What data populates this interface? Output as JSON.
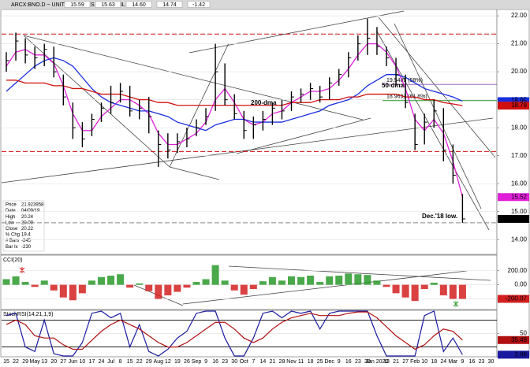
{
  "header": {
    "title": "ARCX:BNO.D ~ UNITED STATES BRENT OIL FUND",
    "quote": [
      "15.59",
      "15.63",
      "14.60",
      "14.74",
      "-1.42"
    ]
  },
  "info": [
    [
      "Price",
      "21.923958"
    ],
    [
      "Date",
      "04/09/19"
    ],
    [
      "High",
      "20.24"
    ],
    [
      "Low",
      "20.09"
    ],
    [
      "Close",
      "20.22"
    ],
    [
      "% Chg",
      "19.4"
    ],
    [
      "# Bars",
      "-245"
    ],
    [
      "Bar Ix",
      "-230"
    ]
  ],
  "chart_data": [
    {
      "type": "ohlc",
      "color": "#000000",
      "grid": true,
      "high": [
        20.7,
        21.4,
        21.2,
        20.9,
        21.0,
        20.9,
        19.9,
        18.9,
        18.2,
        18.5,
        18.9,
        19.5,
        19.6,
        19.5,
        19.0,
        19.1,
        17.9,
        17.8,
        17.8,
        18.0,
        18.3,
        18.7,
        21.0,
        20.3,
        19.2,
        18.6,
        18.4,
        18.6,
        18.9,
        19.0,
        19.3,
        19.4,
        19.6,
        19.5,
        19.8,
        20.1,
        20.7,
        21.3,
        21.9,
        21.6,
        20.9,
        20.5,
        19.9,
        18.5,
        18.5,
        19.0,
        18.7,
        17.4,
        15.63,
        null,
        null,
        null
      ],
      "low": [
        20.0,
        20.4,
        20.3,
        20.1,
        20.2,
        19.8,
        18.8,
        17.6,
        17.3,
        17.7,
        18.2,
        18.5,
        18.9,
        18.4,
        18.3,
        17.8,
        16.6,
        16.9,
        17.1,
        17.3,
        17.7,
        18.1,
        18.6,
        18.8,
        18.3,
        17.6,
        17.6,
        17.9,
        18.1,
        18.3,
        18.6,
        18.9,
        19.0,
        18.9,
        19.0,
        19.5,
        19.8,
        20.4,
        20.6,
        20.6,
        20.2,
        19.5,
        18.7,
        17.2,
        17.4,
        18.0,
        16.8,
        16.0,
        14.6,
        null,
        null,
        null
      ],
      "close": [
        20.4,
        21.1,
        20.6,
        20.5,
        20.8,
        20.0,
        19.1,
        18.0,
        17.6,
        18.3,
        18.7,
        18.9,
        19.3,
        18.6,
        18.7,
        18.4,
        17.4,
        17.2,
        17.5,
        17.6,
        18.0,
        18.4,
        20.0,
        19.0,
        18.5,
        17.9,
        18.1,
        18.3,
        18.7,
        18.6,
        19.1,
        19.2,
        19.4,
        19.1,
        19.6,
        19.9,
        20.5,
        21.0,
        21.2,
        20.9,
        20.5,
        19.9,
        18.9,
        17.4,
        18.2,
        18.6,
        17.2,
        16.3,
        14.74,
        null,
        null,
        null
      ],
      "series": [
        {
          "color": "#e020d8",
          "values": [
            20.2,
            20.7,
            20.8,
            20.6,
            20.6,
            20.3,
            19.5,
            18.5,
            17.9,
            17.9,
            18.4,
            18.7,
            19.0,
            19.0,
            18.8,
            18.5,
            17.8,
            17.4,
            17.4,
            17.6,
            17.8,
            18.2,
            19.0,
            19.4,
            18.9,
            18.3,
            18.1,
            18.2,
            18.5,
            18.6,
            18.9,
            19.1,
            19.3,
            19.3,
            19.4,
            19.7,
            20.1,
            20.6,
            21.0,
            21.0,
            20.7,
            20.2,
            19.4,
            18.3,
            17.9,
            18.3,
            17.8,
            16.8,
            15.52,
            null,
            null,
            null
          ]
        },
        {
          "color": "#1a2ee0",
          "values": [
            19.3,
            19.6,
            19.9,
            20.2,
            20.4,
            20.5,
            20.4,
            20.2,
            19.8,
            19.4,
            19.1,
            18.9,
            18.8,
            18.7,
            18.6,
            18.6,
            18.5,
            18.4,
            18.2,
            18.1,
            18.0,
            17.9,
            18.1,
            18.2,
            18.3,
            18.3,
            18.2,
            18.2,
            18.2,
            18.2,
            18.3,
            18.4,
            18.5,
            18.6,
            18.8,
            18.9,
            19.0,
            19.2,
            19.5,
            19.7,
            19.9,
            19.9,
            19.8,
            19.6,
            19.4,
            19.3,
            19.2,
            19.1,
            18.95,
            null,
            null,
            null
          ]
        },
        {
          "color": "#d01010",
          "values": [
            19.7,
            19.7,
            19.6,
            19.6,
            19.6,
            19.5,
            19.5,
            19.4,
            19.4,
            19.3,
            19.2,
            19.2,
            19.2,
            19.1,
            19.0,
            19.0,
            18.9,
            18.9,
            18.8,
            18.8,
            18.8,
            18.8,
            18.8,
            18.8,
            18.8,
            18.8,
            18.8,
            18.8,
            18.8,
            18.8,
            18.9,
            18.9,
            18.9,
            19.0,
            19.0,
            19.0,
            19.1,
            19.1,
            19.2,
            19.2,
            19.2,
            19.2,
            19.1,
            19.1,
            19.0,
            19.0,
            18.9,
            18.85,
            18.79,
            null,
            null,
            null
          ]
        }
      ],
      "ylim": [
        13.5,
        22.2
      ],
      "yticks": [
        {
          "value": 14,
          "label": "14.00"
        },
        {
          "value": 15,
          "label": "15.00"
        },
        {
          "value": 16,
          "label": "16.00"
        },
        {
          "value": 17,
          "label": "17.00"
        },
        {
          "value": 18,
          "label": "18.00"
        },
        {
          "value": 19,
          "label": "19.00"
        },
        {
          "value": 20,
          "label": "20.00"
        },
        {
          "value": 21,
          "label": "21.00"
        },
        {
          "value": 22,
          "label": "22.00"
        }
      ],
      "hlines": [
        {
          "value": 21.35,
          "color": "#d01010"
        },
        {
          "value": 17.15,
          "color": "#d01010"
        },
        {
          "value": 14.6,
          "color": "#888888"
        }
      ],
      "fib": [
        {
          "value": 19.5485,
          "label": "19.5485 (58%)",
          "color": "#9050b0"
        },
        {
          "value": 18.9691,
          "label": "18.9691 (61.8%)",
          "color": "#2a9a2a"
        }
      ],
      "annotations": [
        {
          "text": "200-dma",
          "color": "#e00000"
        },
        {
          "text": "50-dma",
          "color": "#1a2ee0"
        },
        {
          "text": "Dec.'18 low.",
          "color": "#e00000"
        }
      ]
    },
    {
      "type": "bar",
      "title": "CCI(20)",
      "grid": true,
      "colors": {
        "up": "#2a9a2a",
        "down": "#d42020"
      },
      "values": [
        80,
        120,
        40,
        -30,
        60,
        -80,
        -180,
        -220,
        -120,
        60,
        110,
        130,
        150,
        -40,
        20,
        -90,
        -200,
        -150,
        -100,
        -40,
        40,
        80,
        280,
        60,
        -80,
        -140,
        -60,
        50,
        110,
        60,
        120,
        110,
        130,
        40,
        120,
        130,
        160,
        150,
        140,
        60,
        -30,
        -120,
        -180,
        -230,
        -60,
        30,
        -150,
        -200,
        -200.07,
        null,
        null,
        null
      ],
      "ylim": [
        -340,
        410
      ],
      "yticks": [
        {
          "value": 200,
          "label": "200.00"
        },
        {
          "value": 0,
          "label": "0.00"
        },
        {
          "value": -200,
          "label": "-200.00"
        }
      ]
    },
    {
      "type": "line",
      "title": "StochRSI(14,21,1,9)",
      "grid": true,
      "categories": [
        "15",
        "22",
        "29",
        "May",
        "13",
        "20",
        "27",
        "Jun",
        "10",
        "17",
        "24",
        "Jul",
        "8",
        "15",
        "22",
        "29",
        "Aug",
        "12",
        "19",
        "26",
        "Sep",
        "9",
        "16",
        "23",
        "30",
        "Oct",
        "7",
        "14",
        "21",
        "28",
        "Nov",
        "11",
        "18",
        "25",
        "Dec",
        "9",
        "16",
        "23",
        "30",
        "Jan 2020",
        "13",
        "21",
        "27",
        "Feb",
        "10",
        "18",
        "24",
        "Mar",
        "9",
        "16",
        "23",
        "30"
      ],
      "series": [
        {
          "color": "#1a1aa0",
          "values": [
            90,
            95,
            20,
            10,
            80,
            5,
            0,
            0,
            30,
            95,
            100,
            85,
            95,
            20,
            70,
            10,
            0,
            15,
            40,
            55,
            95,
            100,
            100,
            40,
            0,
            0,
            40,
            95,
            100,
            85,
            100,
            95,
            100,
            60,
            95,
            100,
            100,
            100,
            100,
            45,
            0,
            0,
            0,
            0,
            90,
            100,
            10,
            40,
            2.86,
            null,
            null,
            null
          ]
        },
        {
          "color": "#b01010",
          "values": [
            70,
            80,
            70,
            45,
            40,
            40,
            25,
            15,
            15,
            35,
            55,
            70,
            80,
            70,
            60,
            45,
            30,
            20,
            20,
            30,
            45,
            60,
            75,
            75,
            60,
            40,
            30,
            40,
            60,
            75,
            85,
            90,
            95,
            90,
            90,
            90,
            95,
            98,
            98,
            85,
            65,
            45,
            30,
            15,
            25,
            45,
            60,
            55,
            35.49,
            null,
            null,
            null
          ]
        }
      ],
      "ylim": [
        0,
        100
      ],
      "yticks": [
        50
      ],
      "hlines": [
        80,
        20
      ]
    }
  ]
}
